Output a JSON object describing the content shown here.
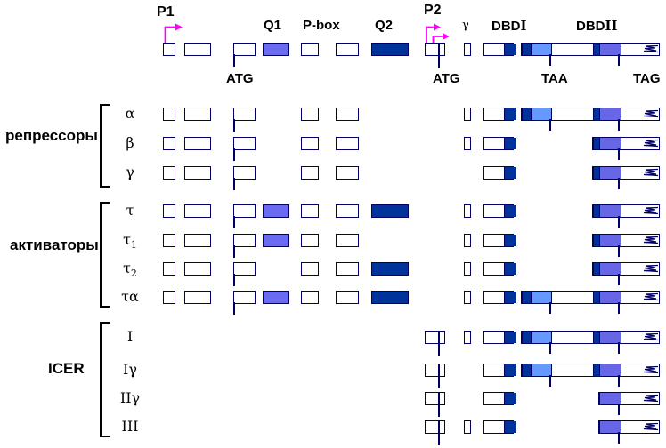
{
  "figure": {
    "colors": {
      "outline": "#000066",
      "dark": "#003399",
      "medium": "#6666e6",
      "q1": "#6b6bf2",
      "light": "#6699ff",
      "magenta": "#ff00ff",
      "text": "#000000"
    },
    "header": {
      "p1": "P1",
      "p2": "P2",
      "q1": "Q1",
      "p_box": "P-box",
      "q2": "Q2",
      "gamma_exon": "γ",
      "dbd1_prefix": "DBD",
      "dbd1_numeral": "I",
      "dbd2_prefix": "DBD",
      "dbd2_numeral": "II",
      "atg_p1": "ATG",
      "atg_p2": "ATG",
      "taa": "TAA",
      "tag": "TAG"
    },
    "groups": [
      {
        "id": "repressors",
        "label": "репрессоры",
        "rows": [
          {
            "id": "alpha",
            "label": "α"
          },
          {
            "id": "beta",
            "label": "β"
          },
          {
            "id": "gamma",
            "label": "γ"
          }
        ]
      },
      {
        "id": "activators",
        "label": "активаторы",
        "rows": [
          {
            "id": "tau",
            "label": "τ"
          },
          {
            "id": "tau1",
            "label": "τ",
            "sub": "1"
          },
          {
            "id": "tau2",
            "label": "τ",
            "sub": "2"
          },
          {
            "id": "taua",
            "label": "τα"
          }
        ]
      },
      {
        "id": "icer",
        "label": "ICER",
        "rows": [
          {
            "id": "icer1",
            "label": "I"
          },
          {
            "id": "icer1g",
            "label": "Iγ"
          },
          {
            "id": "icer2g",
            "label": "IIγ"
          },
          {
            "id": "icer3",
            "label": "III"
          }
        ]
      }
    ],
    "isoforms": {
      "reference": [
        "e1",
        "e2",
        "atg",
        "q1",
        "pbox",
        "e6",
        "q2",
        "p2",
        "g",
        "dbd1",
        "tail_full"
      ],
      "alpha": [
        "e1",
        "e2",
        "atg",
        "pbox",
        "e6",
        "g",
        "dbd1",
        "tail_full"
      ],
      "beta": [
        "e1",
        "e2",
        "atg",
        "pbox",
        "e6",
        "g",
        "dbd1",
        "tail_dbd2"
      ],
      "gamma": [
        "e1",
        "e2",
        "atg",
        "pbox",
        "e6",
        "dbd1",
        "tail_dbd2"
      ],
      "tau": [
        "e1",
        "e2",
        "atg",
        "q1",
        "pbox",
        "e6",
        "q2",
        "g",
        "dbd1",
        "tail_dbd2"
      ],
      "tau1": [
        "e1",
        "e2",
        "atg",
        "q1",
        "pbox",
        "e6",
        "g",
        "dbd1",
        "tail_dbd2"
      ],
      "tau2": [
        "e1",
        "e2",
        "atg",
        "pbox",
        "e6",
        "q2",
        "g",
        "dbd1",
        "tail_dbd2"
      ],
      "taua": [
        "e1",
        "e2",
        "atg",
        "q1",
        "pbox",
        "e6",
        "q2",
        "g",
        "dbd1",
        "tail_full"
      ],
      "icer1": [
        "p2",
        "g",
        "dbd1",
        "tail_full"
      ],
      "icer1g": [
        "p2",
        "dbd1",
        "tail_full"
      ],
      "icer2g": [
        "p2",
        "dbd1",
        "tail_dbd2g"
      ],
      "icer3": [
        "p2",
        "g",
        "dbd1",
        "tail_dbd2g"
      ]
    }
  }
}
